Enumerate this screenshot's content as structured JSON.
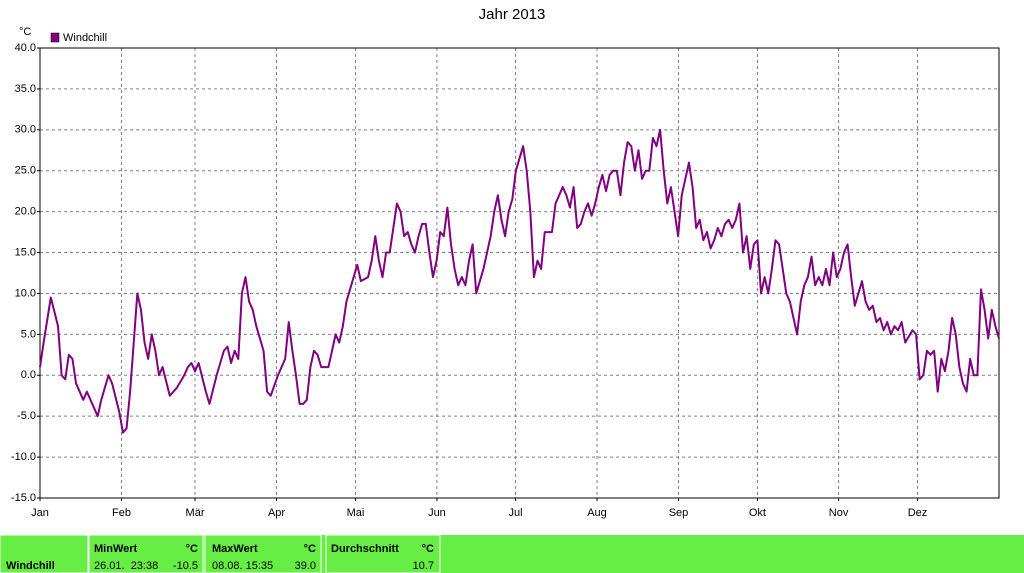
{
  "chart_data": {
    "type": "line",
    "title": "Jahr 2013",
    "y_label": "°C",
    "xlim": [
      0,
      266
    ],
    "ylim": [
      -15,
      40
    ],
    "xticks": [
      {
        "value": 0,
        "label": "Jan"
      },
      {
        "value": 22.6,
        "label": "Feb"
      },
      {
        "value": 43.0,
        "label": "Mär"
      },
      {
        "value": 65.6,
        "label": "Apr"
      },
      {
        "value": 87.5,
        "label": "Mai"
      },
      {
        "value": 110.1,
        "label": "Jun"
      },
      {
        "value": 131.9,
        "label": "Jul"
      },
      {
        "value": 154.5,
        "label": "Aug"
      },
      {
        "value": 177.1,
        "label": "Sep"
      },
      {
        "value": 199.0,
        "label": "Okt"
      },
      {
        "value": 221.5,
        "label": "Nov"
      },
      {
        "value": 243.4,
        "label": "Dez"
      }
    ],
    "yticks": [
      {
        "value": 40,
        "label": "40.0"
      },
      {
        "value": 35,
        "label": "35.0"
      },
      {
        "value": 30,
        "label": "30.0"
      },
      {
        "value": 25,
        "label": "25.0"
      },
      {
        "value": 20,
        "label": "20.0"
      },
      {
        "value": 15,
        "label": "15.0"
      },
      {
        "value": 10,
        "label": "10.0"
      },
      {
        "value": 5,
        "label": "5.0"
      },
      {
        "value": 0,
        "label": "0.0"
      },
      {
        "value": -5,
        "label": "-5.0"
      },
      {
        "value": -10,
        "label": "-10.0"
      },
      {
        "value": -15,
        "label": "-15.0"
      }
    ],
    "grid": true,
    "legend": "top-left",
    "x": [
      0,
      1,
      3,
      5,
      6,
      7,
      8,
      9,
      10,
      12,
      13,
      15,
      16,
      17,
      19,
      20,
      22,
      23,
      24,
      25,
      27,
      28,
      29,
      30,
      31,
      32,
      33,
      34,
      36,
      38,
      40,
      41,
      42,
      43,
      44,
      46,
      47,
      49,
      51,
      52,
      53,
      54,
      55,
      56,
      57,
      58,
      59,
      60,
      62,
      63,
      64,
      66,
      68,
      69,
      70,
      71,
      72,
      73,
      74,
      75,
      76,
      77,
      78,
      79,
      80,
      81,
      82,
      83,
      84,
      85,
      86,
      87,
      88,
      89,
      91,
      92,
      93,
      94,
      95,
      96,
      97,
      98,
      99,
      100,
      101,
      102,
      103,
      104,
      105,
      106,
      107,
      108,
      109,
      110,
      111,
      112,
      113,
      114,
      115,
      116,
      117,
      118,
      119,
      120,
      121,
      122,
      123,
      124,
      125,
      126,
      127,
      128,
      129,
      130,
      131,
      132,
      133,
      134,
      135,
      136,
      137,
      138,
      139,
      140,
      142,
      143,
      144,
      145,
      146,
      147,
      148,
      149,
      150,
      151,
      152,
      153,
      154,
      155,
      156,
      157,
      158,
      159,
      160,
      161,
      162,
      163,
      164,
      165,
      166,
      167,
      168,
      169,
      170,
      171,
      172,
      173,
      174,
      175,
      176,
      177,
      178,
      179,
      180,
      181,
      182,
      183,
      184,
      185,
      186,
      187,
      188,
      189,
      190,
      191,
      192,
      193,
      194,
      195,
      196,
      197,
      198,
      199,
      200,
      201,
      202,
      203,
      204,
      205,
      206,
      207,
      208,
      209,
      210,
      211,
      212,
      213,
      214,
      215,
      216,
      217,
      218,
      219,
      220,
      221,
      222,
      223,
      224,
      225,
      226,
      227,
      228,
      229,
      230,
      231,
      232,
      233,
      234,
      235,
      236,
      237,
      238,
      239,
      240,
      242,
      243,
      244,
      245,
      246,
      247,
      248,
      249,
      250,
      251,
      252,
      253,
      254,
      255,
      256,
      257,
      258,
      259,
      260,
      261,
      262,
      263,
      264,
      265,
      266
    ],
    "series": [
      {
        "name": "Windchill",
        "color": "#800080",
        "values": [
          1,
          4,
          9.5,
          6,
          0,
          -0.5,
          2.5,
          2,
          -1,
          -3,
          -2,
          -4,
          -5,
          -3,
          0,
          -1,
          -4.5,
          -7,
          -6.5,
          -2,
          10,
          8,
          4,
          2,
          5,
          3,
          0,
          1,
          -2.5,
          -1.5,
          0,
          1,
          1.5,
          0.5,
          1.5,
          -2,
          -3.5,
          0,
          3,
          3.5,
          1.5,
          3,
          2,
          10,
          12,
          9,
          8,
          6,
          3,
          -2,
          -2.5,
          0,
          2,
          6.5,
          3,
          0,
          -3.5,
          -3.5,
          -3,
          1,
          3,
          2.5,
          1,
          1,
          1,
          3,
          5,
          4,
          6,
          9,
          10.5,
          12,
          13.5,
          11.5,
          12,
          14,
          17,
          14,
          12,
          15,
          15,
          18,
          21,
          20,
          17,
          17.5,
          16,
          15,
          17,
          18.5,
          18.5,
          15,
          12,
          14,
          17.5,
          17,
          20.5,
          16,
          13,
          11,
          12,
          11,
          14,
          16,
          10,
          11.5,
          13,
          15,
          17,
          20,
          22,
          19,
          17,
          20,
          21.5,
          25,
          26.5,
          28,
          25,
          20,
          12,
          14,
          13,
          17.5,
          17.5,
          21,
          22,
          23,
          22,
          20.5,
          23,
          18,
          18.5,
          20,
          21,
          19.5,
          21,
          23,
          24.5,
          22.5,
          24.5,
          25,
          25,
          22,
          26,
          28.5,
          28,
          25,
          27.5,
          24,
          25,
          25,
          29,
          28,
          30,
          25,
          21,
          23,
          20,
          17,
          22,
          24,
          26,
          23,
          18,
          19,
          16.5,
          17.5,
          15.5,
          16.5,
          18,
          17,
          18.5,
          19,
          18,
          19,
          21,
          15,
          17,
          13,
          16,
          16.5,
          10,
          12,
          10,
          13,
          16.5,
          16,
          13,
          10,
          9,
          7,
          5,
          9,
          11,
          12,
          14.5,
          11,
          12,
          11,
          13,
          11,
          15,
          12,
          13,
          15,
          16,
          12,
          8.5,
          10,
          11.5,
          9,
          8,
          8.5,
          6.5,
          7,
          5.5,
          6.5,
          5,
          6,
          5.5,
          6.5,
          4,
          5.5,
          5,
          -0.5,
          0,
          3,
          2.5,
          3,
          -2,
          2,
          0.5,
          3,
          7,
          5,
          1,
          -1,
          -2,
          2,
          0,
          0,
          10.5,
          8,
          4.5,
          8,
          6,
          4.5
        ]
      }
    ]
  },
  "stats_panel": {
    "row_label": "Windchill",
    "min": {
      "header": "MinWert",
      "unit": "°C",
      "timestamp": "26.01.  23:38",
      "value": "-10.5"
    },
    "max": {
      "header": "MaxWert",
      "unit": "°C",
      "timestamp": "08.08. 15:35",
      "value": "39.0"
    },
    "avg": {
      "header": "Durchschnitt",
      "unit": "°C",
      "value": "10.7"
    }
  }
}
